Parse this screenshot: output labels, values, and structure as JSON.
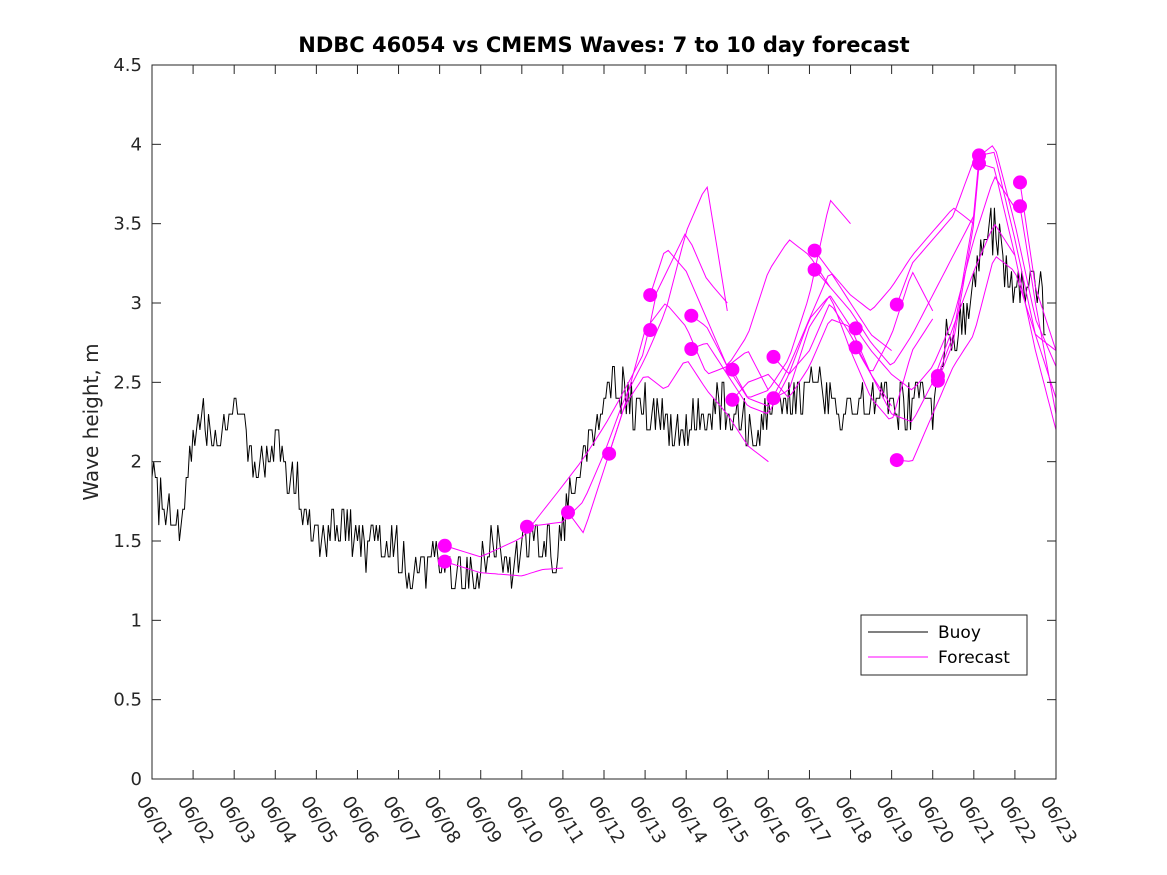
{
  "chart_data": {
    "type": "line",
    "title": "NDBC 46054 vs CMEMS Waves: 7 to 10 day forecast",
    "xlabel": "",
    "ylabel": "Wave height, m",
    "xlim": [
      "06/01",
      "06/23"
    ],
    "ylim": [
      0,
      4.5
    ],
    "x_ticks": [
      "06/01",
      "06/02",
      "06/03",
      "06/04",
      "06/05",
      "06/06",
      "06/07",
      "06/08",
      "06/09",
      "06/10",
      "06/11",
      "06/12",
      "06/13",
      "06/14",
      "06/15",
      "06/16",
      "06/17",
      "06/18",
      "06/19",
      "06/20",
      "06/21",
      "06/22",
      "06/23"
    ],
    "y_ticks": [
      "0",
      "0.5",
      "1",
      "1.5",
      "2",
      "2.5",
      "3",
      "3.5",
      "4",
      "4.5"
    ],
    "grid": false,
    "legend": {
      "position": "bottom-right",
      "entries": [
        "Buoy",
        "Forecast"
      ]
    },
    "colors": {
      "buoy": "#000000",
      "forecast": "#ff00ff",
      "axes": "#262626"
    },
    "series": [
      {
        "name": "Buoy",
        "color": "#000000",
        "x": [
          "06/01 00h",
          "06/01 06h",
          "06/01 12h",
          "06/01 18h",
          "06/02 00h",
          "06/02 06h",
          "06/02 12h",
          "06/02 18h",
          "06/03 00h",
          "06/03 06h",
          "06/03 12h",
          "06/03 18h",
          "06/04 00h",
          "06/04 06h",
          "06/04 12h",
          "06/04 18h",
          "06/05 00h",
          "06/05 06h",
          "06/05 12h",
          "06/05 18h",
          "06/06 00h",
          "06/06 06h",
          "06/06 12h",
          "06/06 18h",
          "06/07 00h",
          "06/07 06h",
          "06/07 12h",
          "06/07 18h",
          "06/08 00h",
          "06/08 06h",
          "06/08 12h",
          "06/08 18h",
          "06/09 00h",
          "06/09 06h",
          "06/09 12h",
          "06/09 18h",
          "06/10 00h",
          "06/10 06h",
          "06/10 12h",
          "06/10 18h",
          "06/11 00h",
          "06/11 06h",
          "06/11 12h",
          "06/11 18h",
          "06/12 00h",
          "06/12 06h",
          "06/12 12h",
          "06/12 18h",
          "06/13 00h",
          "06/13 06h",
          "06/13 12h",
          "06/13 18h",
          "06/14 00h",
          "06/14 06h",
          "06/14 12h",
          "06/14 18h",
          "06/15 00h",
          "06/15 06h",
          "06/15 12h",
          "06/15 18h",
          "06/16 00h",
          "06/16 06h",
          "06/16 12h",
          "06/16 18h",
          "06/17 00h",
          "06/17 06h",
          "06/17 12h",
          "06/17 18h",
          "06/18 00h",
          "06/18 06h",
          "06/18 12h",
          "06/18 18h",
          "06/19 00h",
          "06/19 06h",
          "06/19 12h",
          "06/19 18h",
          "06/20 00h",
          "06/20 06h",
          "06/20 12h",
          "06/20 18h",
          "06/21 00h",
          "06/21 06h",
          "06/21 12h",
          "06/21 18h",
          "06/22 00h",
          "06/22 06h",
          "06/22 12h",
          "06/22 18h"
        ],
        "values": [
          1.9,
          1.7,
          1.7,
          1.6,
          2.2,
          2.3,
          2.1,
          2.3,
          2.4,
          2.3,
          1.9,
          2.0,
          2.1,
          1.9,
          1.9,
          1.7,
          1.5,
          1.5,
          1.6,
          1.6,
          1.5,
          1.4,
          1.5,
          1.5,
          1.4,
          1.3,
          1.3,
          1.4,
          1.3,
          1.3,
          1.3,
          1.3,
          1.3,
          1.5,
          1.4,
          1.3,
          1.5,
          1.5,
          1.5,
          1.4,
          1.6,
          1.9,
          2.0,
          2.2,
          2.4,
          2.5,
          2.4,
          2.3,
          2.4,
          2.3,
          2.2,
          2.2,
          2.2,
          2.3,
          2.2,
          2.4,
          2.3,
          2.3,
          2.2,
          2.2,
          2.3,
          2.4,
          2.4,
          2.4,
          2.5,
          2.5,
          2.4,
          2.3,
          2.3,
          2.4,
          2.4,
          2.4,
          2.3,
          2.4,
          2.3,
          2.4,
          2.3,
          2.7,
          2.8,
          2.9,
          3.1,
          3.3,
          3.5,
          3.2,
          3.0,
          3.1,
          3.2,
          2.9
        ]
      },
      {
        "name": "Forecast",
        "color": "#ff00ff",
        "runs": [
          {
            "x": [
              "06/08 03h",
              "06/09 00h",
              "06/10 00h",
              "06/11 00h",
              "06/11 12h",
              "06/12 00h",
              "06/12 12h",
              "06/13 00h",
              "06/13 06h",
              "06/14 00h",
              "06/14 12h",
              "06/15 00h"
            ],
            "values": [
              1.47,
              1.4,
              1.52,
              1.85,
              2.02,
              2.22,
              2.45,
              2.7,
              3.05,
              3.45,
              3.15,
              3.0
            ]
          },
          {
            "x": [
              "06/08 03h",
              "06/09 00h",
              "06/10 00h",
              "06/10 12h",
              "06/11 00h"
            ],
            "values": [
              1.37,
              1.3,
              1.28,
              1.32,
              1.33
            ]
          },
          {
            "x": [
              "06/10 03h",
              "06/11 00h",
              "06/11 12h",
              "06/12 00h",
              "06/12 12h",
              "06/13 00h",
              "06/13 12h",
              "06/14 00h",
              "06/14 12h",
              "06/15 00h"
            ],
            "values": [
              1.59,
              1.62,
              1.75,
              2.05,
              2.4,
              2.65,
              2.95,
              3.45,
              3.75,
              2.95
            ]
          },
          {
            "x": [
              "06/11 03h",
              "06/11 12h",
              "06/12 00h",
              "06/12 12h",
              "06/13 00h",
              "06/13 12h",
              "06/14 00h",
              "06/14 12h",
              "06/15 00h",
              "06/15 12h",
              "06/16 00h"
            ],
            "values": [
              1.68,
              1.55,
              1.95,
              2.35,
              2.55,
              2.45,
              2.65,
              2.45,
              2.3,
              2.1,
              2.0
            ]
          },
          {
            "x": [
              "06/12 03h",
              "06/12 12h",
              "06/13 00h",
              "06/13 12h",
              "06/14 00h",
              "06/14 12h",
              "06/15 00h",
              "06/15 12h",
              "06/16 00h"
            ],
            "values": [
              2.05,
              2.35,
              2.83,
              3.0,
              2.85,
              2.55,
              2.6,
              2.7,
              2.45
            ]
          },
          {
            "x": [
              "06/13 03h",
              "06/13 12h",
              "06/14 00h",
              "06/14 12h",
              "06/15 00h",
              "06/15 12h",
              "06/16 00h",
              "06/16 12h",
              "06/17 00h",
              "06/17 12h"
            ],
            "values": [
              3.05,
              3.35,
              3.2,
              2.9,
              2.6,
              2.8,
              3.2,
              3.4,
              3.3,
              3.1
            ]
          },
          {
            "x": [
              "06/14 03h",
              "06/14 12h",
              "06/15 00h",
              "06/15 12h",
              "06/16 00h",
              "06/16 12h",
              "06/17 00h",
              "06/17 12h",
              "06/18 00h"
            ],
            "values": [
              2.92,
              2.85,
              2.6,
              2.4,
              2.45,
              2.65,
              3.05,
              3.65,
              3.5
            ]
          },
          {
            "x": [
              "06/14 03h",
              "06/14 12h",
              "06/15 00h",
              "06/15 12h",
              "06/16 00h",
              "06/16 12h",
              "06/17 00h",
              "06/17 12h",
              "06/18 00h"
            ],
            "values": [
              2.71,
              2.75,
              2.55,
              2.35,
              2.3,
              2.55,
              2.9,
              3.05,
              2.85
            ]
          },
          {
            "x": [
              "06/15 03h",
              "06/15 12h",
              "06/16 00h",
              "06/16 12h",
              "06/17 00h",
              "06/17 12h",
              "06/18 00h",
              "06/18 12h",
              "06/19 00h"
            ],
            "values": [
              2.58,
              2.4,
              2.35,
              2.6,
              2.9,
              3.2,
              3.0,
              2.8,
              2.7
            ]
          },
          {
            "x": [
              "06/15 03h",
              "06/15 12h",
              "06/16 00h",
              "06/16 12h",
              "06/17 00h",
              "06/17 12h",
              "06/18 00h",
              "06/18 12h",
              "06/19 00h"
            ],
            "values": [
              2.39,
              2.5,
              2.55,
              2.4,
              2.6,
              2.9,
              2.85,
              2.55,
              2.35
            ]
          },
          {
            "x": [
              "06/16 03h",
              "06/16 12h",
              "06/17 00h",
              "06/17 12h",
              "06/18 00h",
              "06/18 12h",
              "06/19 00h",
              "06/19 12h",
              "06/20 00h"
            ],
            "values": [
              2.66,
              2.55,
              2.7,
              3.0,
              2.8,
              2.55,
              2.8,
              3.2,
              2.95
            ]
          },
          {
            "x": [
              "06/16 03h",
              "06/16 12h",
              "06/17 00h",
              "06/17 12h",
              "06/18 00h",
              "06/18 12h",
              "06/19 00h",
              "06/19 12h",
              "06/20 00h"
            ],
            "values": [
              2.4,
              2.45,
              2.85,
              3.05,
              2.7,
              2.4,
              2.25,
              2.7,
              2.9
            ]
          },
          {
            "x": [
              "06/17 03h",
              "06/17 12h",
              "06/18 00h",
              "06/18 12h",
              "06/19 00h",
              "06/19 12h",
              "06/20 00h",
              "06/20 12h",
              "06/21 00h"
            ],
            "values": [
              3.33,
              3.2,
              3.05,
              2.95,
              3.1,
              3.3,
              3.45,
              3.6,
              3.5
            ]
          },
          {
            "x": [
              "06/17 03h",
              "06/17 12h",
              "06/18 00h",
              "06/18 12h",
              "06/19 00h",
              "06/19 12h",
              "06/20 00h",
              "06/20 12h",
              "06/21 00h"
            ],
            "values": [
              3.21,
              3.1,
              2.95,
              2.75,
              2.6,
              2.8,
              3.05,
              3.3,
              3.55
            ]
          },
          {
            "x": [
              "06/18 03h",
              "06/18 12h",
              "06/19 00h",
              "06/19 12h",
              "06/20 00h",
              "06/20 12h",
              "06/21 00h",
              "06/21 12h",
              "06/22 00h"
            ],
            "values": [
              2.84,
              2.7,
              2.55,
              2.45,
              2.6,
              2.9,
              3.4,
              3.8,
              3.6
            ]
          },
          {
            "x": [
              "06/18 03h",
              "06/18 12h",
              "06/19 00h",
              "06/19 12h",
              "06/20 00h",
              "06/20 12h",
              "06/21 00h",
              "06/21 12h",
              "06/22 00h"
            ],
            "values": [
              2.72,
              2.55,
              2.3,
              2.25,
              2.5,
              2.85,
              3.2,
              3.5,
              3.3
            ]
          },
          {
            "x": [
              "06/19 03h",
              "06/19 12h",
              "06/20 00h",
              "06/20 12h",
              "06/21 00h",
              "06/21 12h",
              "06/22 00h",
              "06/22 12h",
              "06/23 00h"
            ],
            "values": [
              2.99,
              3.25,
              3.4,
              3.55,
              3.9,
              4.0,
              3.5,
              2.9,
              2.6
            ]
          },
          {
            "x": [
              "06/19 03h",
              "06/19 12h",
              "06/20 00h",
              "06/20 12h",
              "06/21 00h",
              "06/21 12h",
              "06/22 00h",
              "06/22 12h",
              "06/23 00h"
            ],
            "values": [
              2.01,
              2.0,
              2.3,
              2.6,
              2.8,
              3.3,
              3.2,
              2.8,
              2.4
            ]
          },
          {
            "x": [
              "06/20 03h",
              "06/20 12h",
              "06/21 00h",
              "06/21 03h",
              "06/21 12h",
              "06/22 00h",
              "06/22 12h",
              "06/23 00h"
            ],
            "values": [
              2.54,
              2.8,
              3.55,
              3.93,
              3.95,
              3.4,
              2.8,
              2.7
            ]
          },
          {
            "x": [
              "06/20 03h",
              "06/20 12h",
              "06/21 00h",
              "06/21 03h",
              "06/21 12h",
              "06/22 00h",
              "06/22 12h",
              "06/23 00h"
            ],
            "values": [
              2.51,
              2.75,
              3.5,
              3.88,
              3.85,
              3.3,
              2.7,
              2.2
            ]
          },
          {
            "x": [
              "06/22 03h",
              "06/22 12h",
              "06/23 00h"
            ],
            "values": [
              3.76,
              3.1,
              2.7
            ]
          },
          {
            "x": [
              "06/22 03h",
              "06/22 12h",
              "06/23 00h"
            ],
            "values": [
              3.61,
              3.0,
              2.3
            ]
          }
        ],
        "initial_points": {
          "x": [
            "06/08 03h",
            "06/08 03h",
            "06/10 03h",
            "06/11 03h",
            "06/12 03h",
            "06/13 03h",
            "06/13 03h",
            "06/14 03h",
            "06/14 03h",
            "06/15 03h",
            "06/15 03h",
            "06/16 03h",
            "06/16 03h",
            "06/17 03h",
            "06/17 03h",
            "06/18 03h",
            "06/18 03h",
            "06/19 03h",
            "06/19 03h",
            "06/20 03h",
            "06/20 03h",
            "06/21 03h",
            "06/21 03h",
            "06/22 03h",
            "06/22 03h"
          ],
          "values": [
            1.47,
            1.37,
            1.59,
            1.68,
            2.05,
            3.05,
            2.83,
            2.92,
            2.71,
            2.58,
            2.39,
            2.66,
            2.4,
            3.33,
            3.21,
            2.84,
            2.72,
            2.99,
            2.01,
            2.54,
            2.51,
            3.93,
            3.88,
            3.76,
            3.61
          ]
        }
      }
    ]
  }
}
